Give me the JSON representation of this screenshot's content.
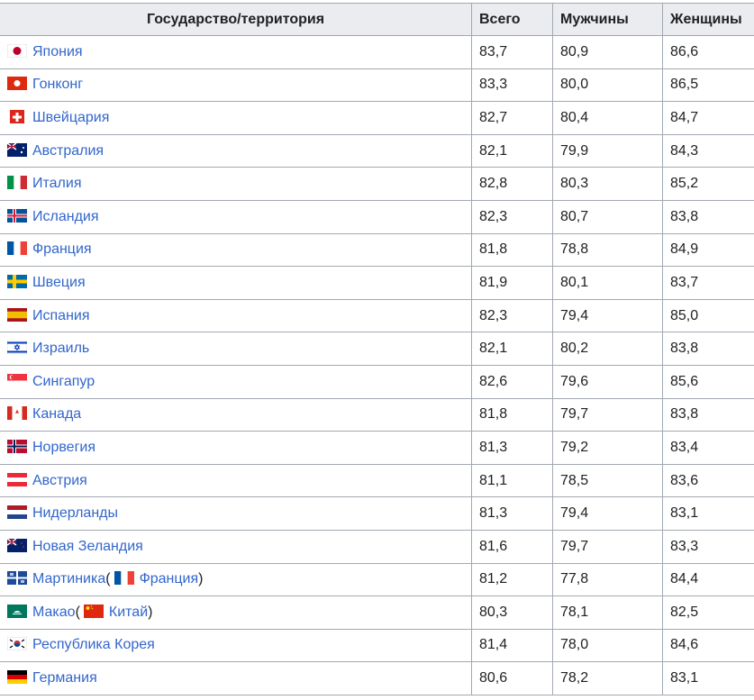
{
  "table": {
    "headers": [
      "Государство/территория",
      "Всего",
      "Мужчины",
      "Женщины"
    ],
    "rows": [
      {
        "name": [
          "Япония"
        ],
        "total": "83,7",
        "men": "80,9",
        "women": "86,6"
      },
      {
        "name": [
          "Гонконг"
        ],
        "total": "83,3",
        "men": "80,0",
        "women": "86,5"
      },
      {
        "name": [
          "Швейцария"
        ],
        "total": "82,7",
        "men": "80,4",
        "women": "84,7"
      },
      {
        "name": [
          "Австралия"
        ],
        "total": "82,1",
        "men": "79,9",
        "women": "84,3"
      },
      {
        "name": [
          "Италия"
        ],
        "total": "82,8",
        "men": "80,3",
        "women": "85,2"
      },
      {
        "name": [
          "Исландия"
        ],
        "total": "82,3",
        "men": "80,7",
        "women": "83,8"
      },
      {
        "name": [
          "Франция"
        ],
        "total": "81,8",
        "men": "78,8",
        "women": "84,9"
      },
      {
        "name": [
          "Швеция"
        ],
        "total": "81,9",
        "men": "80,1",
        "women": "83,7"
      },
      {
        "name": [
          "Испания"
        ],
        "total": "82,3",
        "men": "79,4",
        "women": "85,0"
      },
      {
        "name": [
          "Израиль"
        ],
        "total": "82,1",
        "men": "80,2",
        "women": "83,8"
      },
      {
        "name": [
          "Сингапур"
        ],
        "total": "82,6",
        "men": "79,6",
        "women": "85,6"
      },
      {
        "name": [
          "Канада"
        ],
        "total": "81,8",
        "men": "79,7",
        "women": "83,8"
      },
      {
        "name": [
          "Норвегия"
        ],
        "total": "81,3",
        "men": "79,2",
        "women": "83,4"
      },
      {
        "name": [
          "Австрия"
        ],
        "total": "81,1",
        "men": "78,5",
        "women": "83,6"
      },
      {
        "name": [
          "Нидерланды"
        ],
        "total": "81,3",
        "men": "79,4",
        "women": "83,1"
      },
      {
        "name": [
          "Новая Зеландия"
        ],
        "total": "81,6",
        "men": "79,7",
        "women": "83,3"
      },
      {
        "name": [
          "Мартиника",
          "(",
          "Франция",
          ")"
        ],
        "total": "81,2",
        "men": "77,8",
        "women": "84,4"
      },
      {
        "name": [
          "Макао",
          "(",
          "Китай",
          ")"
        ],
        "total": "80,3",
        "men": "78,1",
        "women": "82,5"
      },
      {
        "name": [
          "Республика Корея"
        ],
        "total": "81,4",
        "men": "78,0",
        "women": "84,6"
      },
      {
        "name": [
          "Германия"
        ],
        "total": "80,6",
        "men": "78,2",
        "women": "83,1"
      }
    ]
  }
}
